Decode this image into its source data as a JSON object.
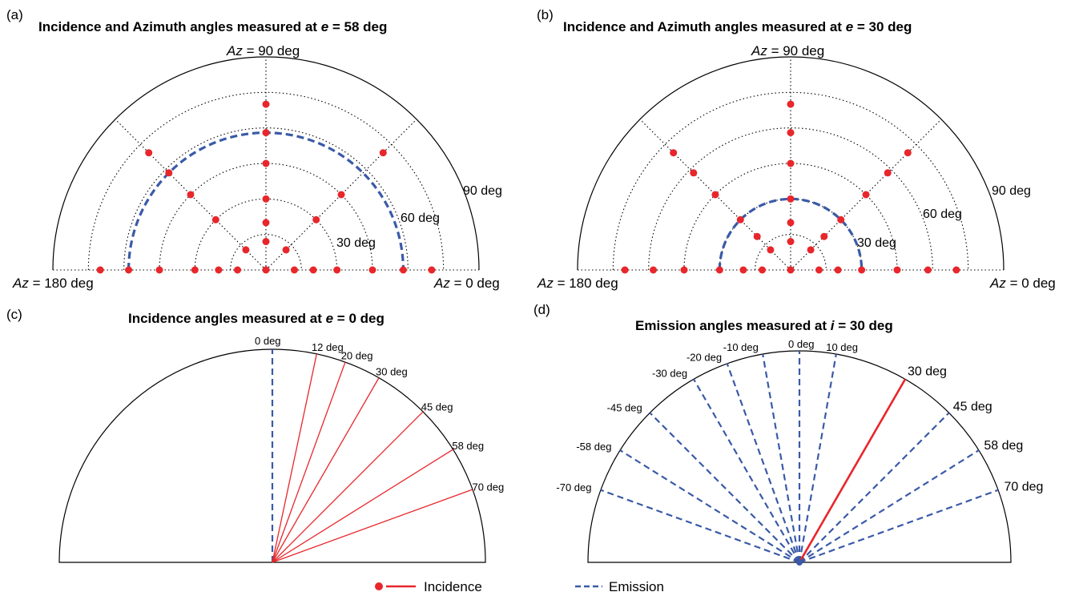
{
  "colors": {
    "incidence": "#e8262b",
    "emission": "#3a5aa8",
    "axis": "#000000"
  },
  "panel_a": {
    "letter": "(a)",
    "title_pre": "Incidence and Azimuth angles measured at ",
    "title_var": "e",
    "title_eq": " = ",
    "title_val": "58 deg",
    "az_top": "90 deg",
    "az_left": "180 deg",
    "az_right": "0 deg",
    "az_prefix": "Az",
    "ring_labels": [
      "30 deg",
      "60 deg",
      "90 deg"
    ],
    "emission_ring_deg": 58,
    "points": [
      {
        "inc": 12,
        "az": 0
      },
      {
        "inc": 20,
        "az": 0
      },
      {
        "inc": 30,
        "az": 0
      },
      {
        "inc": 45,
        "az": 0
      },
      {
        "inc": 58,
        "az": 0
      },
      {
        "inc": 70,
        "az": 0
      },
      {
        "inc": 12,
        "az": 180
      },
      {
        "inc": 20,
        "az": 180
      },
      {
        "inc": 30,
        "az": 180
      },
      {
        "inc": 45,
        "az": 180
      },
      {
        "inc": 58,
        "az": 180
      },
      {
        "inc": 70,
        "az": 180
      },
      {
        "inc": 12,
        "az": 90
      },
      {
        "inc": 20,
        "az": 90
      },
      {
        "inc": 30,
        "az": 90
      },
      {
        "inc": 45,
        "az": 90
      },
      {
        "inc": 58,
        "az": 90
      },
      {
        "inc": 70,
        "az": 90
      },
      {
        "inc": 12,
        "az": 45
      },
      {
        "inc": 30,
        "az": 45
      },
      {
        "inc": 45,
        "az": 45
      },
      {
        "inc": 70,
        "az": 45
      },
      {
        "inc": 12,
        "az": 135
      },
      {
        "inc": 30,
        "az": 135
      },
      {
        "inc": 45,
        "az": 135
      },
      {
        "inc": 58,
        "az": 135
      },
      {
        "inc": 70,
        "az": 135
      },
      {
        "inc": 0,
        "az": 0
      }
    ]
  },
  "panel_b": {
    "letter": "(b)",
    "title_pre": "Incidence and Azimuth angles measured at ",
    "title_var": "e",
    "title_eq": " = ",
    "title_val": "30 deg",
    "az_top": "90 deg",
    "az_left": "180 deg",
    "az_right": "0 deg",
    "az_prefix": "Az",
    "ring_labels": [
      "30 deg",
      "60 deg",
      "90 deg"
    ],
    "emission_ring_deg": 30,
    "points": [
      {
        "inc": 12,
        "az": 0
      },
      {
        "inc": 20,
        "az": 0
      },
      {
        "inc": 30,
        "az": 0
      },
      {
        "inc": 45,
        "az": 0
      },
      {
        "inc": 58,
        "az": 0
      },
      {
        "inc": 70,
        "az": 0
      },
      {
        "inc": 12,
        "az": 180
      },
      {
        "inc": 20,
        "az": 180
      },
      {
        "inc": 30,
        "az": 180
      },
      {
        "inc": 45,
        "az": 180
      },
      {
        "inc": 58,
        "az": 180
      },
      {
        "inc": 70,
        "az": 180
      },
      {
        "inc": 12,
        "az": 90
      },
      {
        "inc": 20,
        "az": 90
      },
      {
        "inc": 30,
        "az": 90
      },
      {
        "inc": 45,
        "az": 90
      },
      {
        "inc": 58,
        "az": 90
      },
      {
        "inc": 70,
        "az": 90
      },
      {
        "inc": 12,
        "az": 45
      },
      {
        "inc": 20,
        "az": 45
      },
      {
        "inc": 30,
        "az": 45
      },
      {
        "inc": 45,
        "az": 45
      },
      {
        "inc": 58,
        "az": 45
      },
      {
        "inc": 70,
        "az": 45
      },
      {
        "inc": 12,
        "az": 135
      },
      {
        "inc": 20,
        "az": 135
      },
      {
        "inc": 30,
        "az": 135
      },
      {
        "inc": 45,
        "az": 135
      },
      {
        "inc": 58,
        "az": 135
      },
      {
        "inc": 70,
        "az": 135
      },
      {
        "inc": 0,
        "az": 0
      }
    ]
  },
  "panel_c": {
    "letter": "(c)",
    "title_pre": "Incidence angles measured at ",
    "title_var": "e",
    "title_eq": " = ",
    "title_val": "0 deg",
    "emission_angle": 0,
    "emission_label": "0 deg",
    "incidence_angles": [
      12,
      20,
      30,
      45,
      58,
      70
    ],
    "incidence_labels": [
      "12 deg",
      "20 deg",
      "30 deg",
      "45 deg",
      "58 deg",
      "70 deg"
    ]
  },
  "panel_d": {
    "letter": "(d)",
    "title_pre": "Emission angles measured at ",
    "title_var": "i",
    "title_eq": " = ",
    "title_val": "30 deg",
    "incidence_angle": 30,
    "emission_angles": [
      -70,
      -58,
      -45,
      -30,
      -20,
      -10,
      0,
      10,
      30,
      45,
      58,
      70
    ],
    "emission_labels": [
      "-70 deg",
      "-58 deg",
      "-45 deg",
      "-30 deg",
      "-20 deg",
      "-10 deg",
      "0 deg",
      "10 deg",
      "30 deg",
      "45 deg",
      "58 deg",
      "70 deg"
    ]
  },
  "legend": {
    "incidence": "Incidence",
    "emission": "Emission"
  }
}
